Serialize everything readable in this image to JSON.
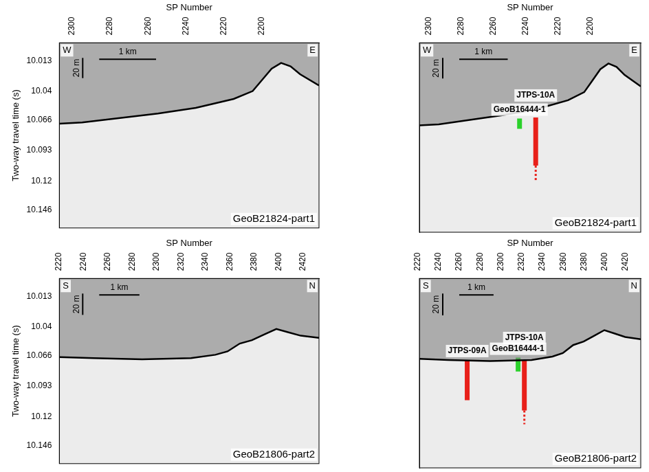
{
  "chart_data": [
    {
      "type": "line",
      "title": "GeoB21824-part1",
      "x_label": "SP Number",
      "y_label": "Two-way travel time (s)",
      "xlim": [
        2312,
        2175
      ],
      "xticks": [
        2300,
        2280,
        2260,
        2240,
        2220,
        2200
      ],
      "ylim": [
        9.997,
        10.162
      ],
      "yticks": [
        10.013,
        10.04,
        10.066,
        10.093,
        10.12,
        10.146
      ],
      "corner_labels": [
        "W",
        "E"
      ],
      "scale_bars": [
        {
          "label": "1 km",
          "axis": "x",
          "length": 30
        },
        {
          "label": "20 m",
          "axis": "y",
          "length": 0.018
        }
      ],
      "series": [
        {
          "color": "#000000",
          "x": [
            2312,
            2300,
            2280,
            2260,
            2240,
            2220,
            2210,
            2205,
            2200,
            2195,
            2190,
            2185,
            2175
          ],
          "values": [
            10.069,
            10.068,
            10.064,
            10.06,
            10.055,
            10.047,
            10.04,
            10.03,
            10.02,
            10.015,
            10.018,
            10.025,
            10.035
          ]
        }
      ],
      "cores": []
    },
    {
      "type": "line",
      "title": "GeoB21824-part1",
      "x_label": "SP Number",
      "tick_labels": "x",
      "xlim": [
        2312,
        2175
      ],
      "xticks": [
        2300,
        2280,
        2260,
        2240,
        2220,
        2200
      ],
      "ylim": [
        9.997,
        10.162
      ],
      "yticks": [
        10.013,
        10.04,
        10.066,
        10.093,
        10.12,
        10.146
      ],
      "corner_labels": [
        "W",
        "E"
      ],
      "scale_bars": [
        {
          "label": "1 km",
          "axis": "x",
          "length": 30
        },
        {
          "label": "20 m",
          "axis": "y",
          "length": 0.018
        }
      ],
      "series": [
        {
          "color": "#000000",
          "x": [
            2312,
            2300,
            2280,
            2260,
            2240,
            2220,
            2210,
            2205,
            2200,
            2195,
            2190,
            2185,
            2175
          ],
          "values": [
            10.069,
            10.068,
            10.064,
            10.06,
            10.055,
            10.047,
            10.04,
            10.03,
            10.02,
            10.015,
            10.018,
            10.025,
            10.035
          ]
        }
      ],
      "cores": [
        {
          "name": "GeoB16444-1",
          "color": "#2bd12b",
          "x": 2250,
          "top": 10.063,
          "bottom": 10.072
        },
        {
          "name": "JTPS-10A",
          "color": "#e8201a",
          "x": 2240,
          "top": 10.062,
          "bottom": 10.104,
          "dashed_bottom": 10.118
        }
      ]
    },
    {
      "type": "line",
      "title": "GeoB21806-part2",
      "x_label": "SP Number",
      "y_label": "Two-way travel time (s)",
      "xlim": [
        2212,
        2425
      ],
      "xticks": [
        2220,
        2240,
        2260,
        2280,
        2300,
        2320,
        2340,
        2360,
        2380,
        2400,
        2420
      ],
      "ylim": [
        9.997,
        10.162
      ],
      "yticks": [
        10.013,
        10.04,
        10.066,
        10.093,
        10.12,
        10.146
      ],
      "corner_labels": [
        "S",
        "N"
      ],
      "scale_bars": [
        {
          "label": "1 km",
          "axis": "x",
          "length": 33
        },
        {
          "label": "20 m",
          "axis": "y",
          "length": 0.019
        }
      ],
      "series": [
        {
          "color": "#000000",
          "x": [
            2212,
            2240,
            2280,
            2320,
            2340,
            2350,
            2360,
            2370,
            2380,
            2390,
            2400,
            2410,
            2425
          ],
          "values": [
            10.067,
            10.068,
            10.069,
            10.068,
            10.065,
            10.062,
            10.055,
            10.052,
            10.047,
            10.042,
            10.045,
            10.048,
            10.05
          ]
        }
      ],
      "cores": []
    },
    {
      "type": "line",
      "title": "GeoB21806-part2",
      "x_label": "SP Number",
      "tick_labels": "x",
      "xlim": [
        2212,
        2425
      ],
      "xticks": [
        2220,
        2240,
        2260,
        2280,
        2300,
        2320,
        2340,
        2360,
        2380,
        2400,
        2420
      ],
      "ylim": [
        9.997,
        10.162
      ],
      "yticks": [
        10.013,
        10.04,
        10.066,
        10.093,
        10.12,
        10.146
      ],
      "corner_labels": [
        "S",
        "N"
      ],
      "scale_bars": [
        {
          "label": "1 km",
          "axis": "x",
          "length": 33
        },
        {
          "label": "20 m",
          "axis": "y",
          "length": 0.019
        }
      ],
      "series": [
        {
          "color": "#000000",
          "x": [
            2212,
            2240,
            2280,
            2320,
            2340,
            2350,
            2360,
            2370,
            2380,
            2390,
            2400,
            2410,
            2425
          ],
          "values": [
            10.067,
            10.068,
            10.069,
            10.068,
            10.065,
            10.062,
            10.055,
            10.052,
            10.047,
            10.042,
            10.045,
            10.048,
            10.05
          ]
        }
      ],
      "cores": [
        {
          "name": "JTPS-09A",
          "color": "#e8201a",
          "x": 2258,
          "top": 10.068,
          "bottom": 10.103
        },
        {
          "name": "GeoB16444-1",
          "color": "#2bd12b",
          "x": 2307,
          "top": 10.066,
          "bottom": 10.078
        },
        {
          "name": "JTPS-10A",
          "color": "#e8201a",
          "x": 2313,
          "top": 10.068,
          "bottom": 10.112,
          "dashed_bottom": 10.124
        }
      ]
    }
  ]
}
